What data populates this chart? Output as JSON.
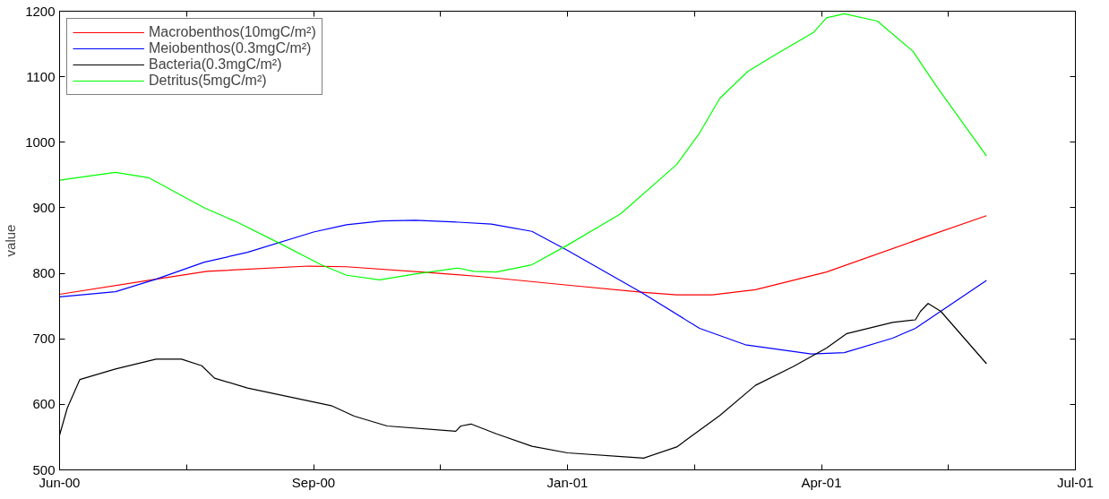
{
  "chart_data": {
    "type": "line",
    "ylabel": "value",
    "xlim": [
      "2000-06-21",
      "2001-07-26"
    ],
    "ylim": [
      500,
      1200
    ],
    "xticks": [
      {
        "value": "2000-06-21",
        "label": "Jun-00"
      },
      {
        "value": "2000-08-10",
        "label": null
      },
      {
        "value": "2000-09-29",
        "label": "Sep-00"
      },
      {
        "value": "2000-11-18",
        "label": null
      },
      {
        "value": "2001-01-07",
        "label": "Jan-01"
      },
      {
        "value": "2001-02-26",
        "label": null
      },
      {
        "value": "2001-04-17",
        "label": "Apr-01"
      },
      {
        "value": "2001-06-06",
        "label": null
      },
      {
        "value": "2001-07-26",
        "label": "Jul-01"
      }
    ],
    "yticks": [
      500,
      600,
      700,
      800,
      900,
      1000,
      1100,
      1200
    ],
    "grid": false,
    "legend": "top left",
    "marker": "none",
    "line_style": "solid",
    "series": [
      {
        "name": "Macrobenthos(10mgC/m²)",
        "color": "#ff0000",
        "x": [
          "2000-06-21",
          "2000-07-29",
          "2000-08-18",
          "2000-09-27",
          "2000-10-12",
          "2000-11-14",
          "2000-12-04",
          "2001-01-07",
          "2001-02-06",
          "2001-02-19",
          "2001-03-05",
          "2001-03-22",
          "2001-04-19",
          "2001-05-29",
          "2001-06-21"
        ],
        "values": [
          768,
          791,
          803,
          811,
          810,
          801,
          795,
          782,
          771,
          767,
          767,
          775,
          802,
          857,
          888
        ]
      },
      {
        "name": "Meiobenthos(0.3mgC/m²)",
        "color": "#0000ff",
        "x": [
          "2000-06-21",
          "2000-07-13",
          "2000-07-29",
          "2000-08-17",
          "2000-09-03",
          "2000-09-29",
          "2000-10-12",
          "2000-10-26",
          "2000-11-08",
          "2000-11-25",
          "2000-12-08",
          "2000-12-24",
          "2001-01-07",
          "2001-02-05",
          "2001-02-28",
          "2001-03-18",
          "2001-04-13",
          "2001-04-26",
          "2001-05-15",
          "2001-05-24",
          "2001-06-21"
        ],
        "values": [
          764,
          772,
          791,
          817,
          832,
          863,
          874,
          880,
          881,
          878,
          875,
          864,
          835,
          771,
          716,
          691,
          677,
          679,
          701,
          716,
          789
        ]
      },
      {
        "name": "Bacteria(0.3mgC/m²)",
        "color": "#000000",
        "x": [
          "2000-06-21",
          "2000-06-24",
          "2000-06-29",
          "2000-07-13",
          "2000-07-29",
          "2000-08-08",
          "2000-08-16",
          "2000-08-21",
          "2000-09-03",
          "2000-10-06",
          "2000-10-15",
          "2000-10-28",
          "2000-11-24",
          "2000-11-26",
          "2000-11-30",
          "2000-12-10",
          "2000-12-24",
          "2001-01-07",
          "2001-02-06",
          "2001-02-19",
          "2001-03-08",
          "2001-03-22",
          "2001-04-06",
          "2001-04-19",
          "2001-04-27",
          "2001-05-15",
          "2001-05-24",
          "2001-05-26",
          "2001-05-29",
          "2001-06-03",
          "2001-06-21"
        ],
        "values": [
          553,
          594,
          638,
          654,
          669,
          669,
          659,
          640,
          625,
          598,
          582,
          567,
          559,
          567,
          570,
          555,
          536,
          526,
          518,
          535,
          583,
          629,
          658,
          686,
          708,
          725,
          729,
          742,
          754,
          742,
          662
        ]
      },
      {
        "name": "Detritus(5mgC/m²)",
        "color": "#00ff00",
        "x": [
          "2000-06-21",
          "2000-07-13",
          "2000-07-26",
          "2000-08-17",
          "2000-08-30",
          "2000-09-16",
          "2000-10-02",
          "2000-10-12",
          "2000-10-25",
          "2000-11-08",
          "2000-11-25",
          "2000-12-01",
          "2000-12-10",
          "2000-12-24",
          "2001-01-07",
          "2001-01-28",
          "2001-02-19",
          "2001-02-28",
          "2001-03-08",
          "2001-03-19",
          "2001-03-30",
          "2001-04-14",
          "2001-04-19",
          "2001-04-26",
          "2001-05-09",
          "2001-05-23",
          "2001-06-01",
          "2001-06-21"
        ],
        "values": [
          942,
          954,
          946,
          900,
          878,
          845,
          813,
          797,
          790,
          799,
          808,
          803,
          802,
          813,
          843,
          891,
          966,
          1014,
          1067,
          1108,
          1134,
          1168,
          1190,
          1196,
          1185,
          1139,
          1087,
          979
        ]
      }
    ]
  }
}
